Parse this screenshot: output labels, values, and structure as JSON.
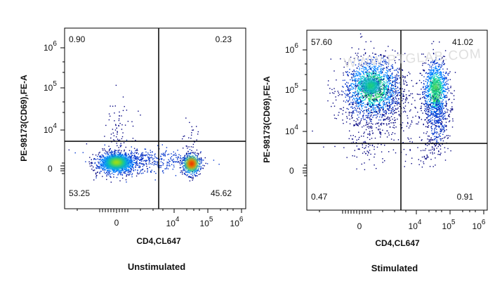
{
  "watermark": "WWW.PTGLAB.COM",
  "colors": {
    "axis": "#000000",
    "gate": "#000000",
    "density": [
      "#00007f",
      "#0033cc",
      "#0080ff",
      "#00c8c8",
      "#20d060",
      "#c8e000",
      "#ff9000",
      "#e00000"
    ]
  },
  "chart_data": [
    {
      "type": "scatter",
      "subtype": "flow-cytometry-density-dot-plot",
      "caption": "Unstimulated",
      "xlabel": "CD4,CL647",
      "ylabel": "PE-98173(CD69),FE-A",
      "x_ticks": [
        {
          "base": "0",
          "exp": ""
        },
        {
          "base": "10",
          "exp": "4"
        },
        {
          "base": "10",
          "exp": "5"
        },
        {
          "base": "10",
          "exp": "6"
        }
      ],
      "y_ticks": [
        {
          "base": "0",
          "exp": ""
        },
        {
          "base": "10",
          "exp": "4"
        },
        {
          "base": "10",
          "exp": "5"
        },
        {
          "base": "10",
          "exp": "6"
        }
      ],
      "quadrants": {
        "top_left": "0.90",
        "top_right": "0.23",
        "bottom_left": "53.25",
        "bottom_right": "45.62"
      },
      "populations": [
        {
          "name": "CD4- CD69-",
          "center": [
            0,
            0
          ],
          "spread": "wide",
          "intensity": "high"
        },
        {
          "name": "CD4+ CD69-",
          "center": [
            "4x10^4",
            0
          ],
          "spread": "tight",
          "intensity": "very high"
        }
      ]
    },
    {
      "type": "scatter",
      "subtype": "flow-cytometry-density-dot-plot",
      "caption": "Stimulated",
      "xlabel": "CD4,CL647",
      "ylabel": "PE-98173(CD69),FE-A",
      "x_ticks": [
        {
          "base": "0",
          "exp": ""
        },
        {
          "base": "10",
          "exp": "4"
        },
        {
          "base": "10",
          "exp": "5"
        },
        {
          "base": "10",
          "exp": "6"
        }
      ],
      "y_ticks": [
        {
          "base": "0",
          "exp": ""
        },
        {
          "base": "10",
          "exp": "4"
        },
        {
          "base": "10",
          "exp": "5"
        },
        {
          "base": "10",
          "exp": "6"
        }
      ],
      "quadrants": {
        "top_left": "57.60",
        "top_right": "41.02",
        "bottom_left": "0.47",
        "bottom_right": "0.91"
      },
      "populations": [
        {
          "name": "CD4- CD69+",
          "center": [
            0,
            "10^5"
          ],
          "spread": "wide",
          "intensity": "medium"
        },
        {
          "name": "CD4+ CD69+",
          "center": [
            "4x10^4",
            "10^5"
          ],
          "spread": "tall",
          "intensity": "medium"
        }
      ]
    }
  ]
}
